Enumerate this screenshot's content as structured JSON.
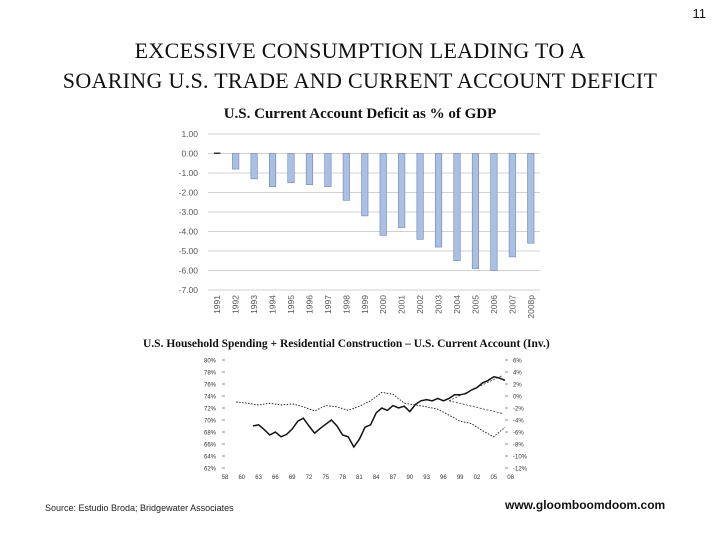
{
  "page": {
    "number": "11",
    "title_line1": "EXCESSIVE  CONSUMPTION  LEADING  TO  A",
    "title_line2": "SOARING  U.S.  TRADE AND  CURRENT  ACCOUNT DEFICIT",
    "source": "Source: Estudio Broda; Bridgewater Associates",
    "website": "www.gloomboomdoom.com"
  },
  "chart_data": [
    {
      "type": "bar",
      "title": "U.S. Current Account Deficit as % of GDP",
      "categories": [
        "1991",
        "1992",
        "1993",
        "1994",
        "1995",
        "1996",
        "1997",
        "1998",
        "1999",
        "2000",
        "2001",
        "2002",
        "2003",
        "2004",
        "2005",
        "2006",
        "2007",
        "2008p"
      ],
      "values": [
        0.05,
        -0.8,
        -1.3,
        -1.7,
        -1.5,
        -1.6,
        -1.7,
        -2.4,
        -3.2,
        -4.2,
        -3.8,
        -4.4,
        -4.8,
        -5.5,
        -5.9,
        -6.0,
        -5.3,
        -4.6
      ],
      "ylim": [
        -7,
        1
      ],
      "yticks": [
        "1.00",
        "0.00",
        "-1.00",
        "-2.00",
        "-3.00",
        "-4.00",
        "-5.00",
        "-6.00",
        "-7.00"
      ],
      "grid": true,
      "bar_color": "#a9bfe3"
    },
    {
      "type": "line",
      "title": "U.S. Household Spending + Residential Construction – U.S. Current Account (Inv.)",
      "x_ticklabels": [
        "58",
        "60",
        "63",
        "66",
        "69",
        "72",
        "75",
        "78",
        "81",
        "84",
        "87",
        "90",
        "93",
        "96",
        "99",
        "02",
        "05",
        "08"
      ],
      "left_yticks": [
        "80%",
        "78%",
        "76%",
        "74%",
        "72%",
        "70%",
        "68%",
        "66%",
        "64%",
        "62%"
      ],
      "right_yticks": [
        "6%",
        "4%",
        "2%",
        "0%",
        "-2%",
        "-4%",
        "-6%",
        "-8%",
        "-10%",
        "-12%"
      ],
      "left_ylim": [
        62,
        80
      ],
      "right_ylim": [
        -12,
        6
      ],
      "series": [
        {
          "name": "U.S. Household Spending + Residential Construction",
          "axis": "left",
          "style": "solid",
          "x": [
            1963,
            1964,
            1965,
            1966,
            1967,
            1968,
            1969,
            1970,
            1971,
            1972,
            1973,
            1974,
            1975,
            1976,
            1977,
            1978,
            1979,
            1980,
            1981,
            1982,
            1983,
            1984,
            1985,
            1986,
            1987,
            1988,
            1989,
            1990,
            1991,
            1992,
            1993,
            1994,
            1995,
            1996,
            1997,
            1998,
            1999,
            2000,
            2001,
            2002,
            2003,
            2004,
            2005,
            2006,
            2007,
            2008
          ],
          "values": [
            69,
            69.2,
            68.4,
            67.5,
            68,
            67.2,
            67.6,
            68.5,
            69.8,
            70.3,
            69,
            67.8,
            68.6,
            69.3,
            70,
            69,
            67.5,
            67.2,
            65.5,
            66.8,
            68.8,
            69.2,
            71.2,
            72,
            71.6,
            72.4,
            72,
            72.3,
            71.4,
            72.6,
            73.2,
            73.4,
            73.2,
            73.6,
            73.2,
            73.6,
            74.2,
            74.2,
            74.4,
            75,
            75.4,
            76.2,
            76.6,
            77.2,
            77,
            76.6
          ]
        },
        {
          "name": "U.S. Current Account (Inv.)",
          "axis": "right",
          "style": "dotted",
          "x": [
            1960,
            1962,
            1964,
            1966,
            1968,
            1970,
            1972,
            1974,
            1976,
            1978,
            1980,
            1982,
            1984,
            1986,
            1988,
            1990,
            1992,
            1994,
            1996,
            1998,
            2000,
            2002,
            2004,
            2006,
            2008
          ],
          "values": [
            -1,
            -1.2,
            -1.5,
            -1.2,
            -1.5,
            -1.3,
            -1.8,
            -2.5,
            -1.6,
            -1.8,
            -2.4,
            -1.7,
            -0.8,
            0.6,
            0.3,
            -1.2,
            -1.5,
            -1.8,
            -2.2,
            -3.2,
            -4.2,
            -4.6,
            -5.8,
            -6.8,
            -5.2
          ]
        }
      ]
    }
  ]
}
